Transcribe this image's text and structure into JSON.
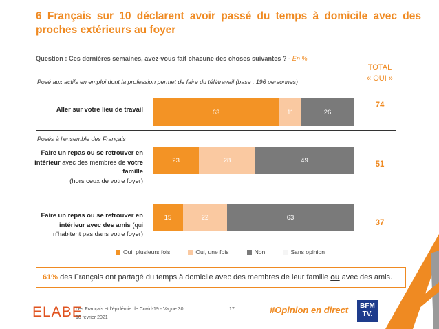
{
  "title": "6 Français sur 10 déclarent avoir passé du temps à domicile avec des proches extérieurs au foyer",
  "question": {
    "text": "Question : Ces dernières semaines, avez-vous fait chacune des choses suivantes ? -",
    "unit": "En %"
  },
  "total_header": {
    "line1": "TOTAL",
    "line2": "« OUI »"
  },
  "sections": [
    "Posé aux actifs en emploi dont la profession permet de faire du télétravail (base : 196 personnes)",
    "Posés à l'ensemble des Français"
  ],
  "rows": [
    {
      "label_bold_1": "Aller sur votre lieu de travail",
      "label_rest": ""
    },
    {
      "label_bold_1": "Faire un repas ou se retrouver en intérieur",
      "label_normal_1": " avec des membres de ",
      "label_bold_2": "votre famille",
      "label_paren": "(hors ceux de votre foyer)"
    },
    {
      "label_bold_1": "Faire un repas ou se retrouver en intérieur avec des amis",
      "label_normal_1": " (qui n'habitent pas dans votre foyer)"
    }
  ],
  "colors": {
    "oui_plusieurs": "#f39325",
    "oui_une": "#fac9a1",
    "non": "#7a7a7a",
    "sans_opinion": "#f5f5f5",
    "accent": "#ef8a22"
  },
  "chart_data": {
    "type": "bar",
    "orientation": "horizontal-stacked-100",
    "categories": [
      "Aller sur votre lieu de travail",
      "Faire un repas ou se retrouver en intérieur avec des membres de votre famille (hors ceux de votre foyer)",
      "Faire un repas ou se retrouver en intérieur avec des amis (qui n'habitent pas dans votre foyer)"
    ],
    "series": [
      {
        "name": "Oui, plusieurs fois",
        "values": [
          63,
          23,
          15
        ]
      },
      {
        "name": "Oui, une fois",
        "values": [
          11,
          28,
          22
        ]
      },
      {
        "name": "Non",
        "values": [
          26,
          49,
          63
        ]
      },
      {
        "name": "Sans opinion",
        "values": [
          0,
          0,
          0
        ]
      }
    ],
    "totals_oui": [
      74,
      51,
      37
    ],
    "legend_position": "bottom"
  },
  "callout": {
    "pct": "61%",
    "text_before": " des Français ont partagé du temps à domicile avec des membres de leur famille ",
    "underlined": "ou",
    "text_after": " avec des amis."
  },
  "footer": {
    "logo": "ELABE",
    "study": "Les Français et l'épidémie de Covid-19 - Vague 30",
    "date": "10 février 2021",
    "page": "17",
    "hashtag": "#Opinion en direct",
    "partner_line1": "BFM",
    "partner_line2": "TV."
  }
}
